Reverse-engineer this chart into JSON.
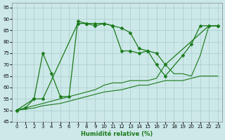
{
  "xlabel": "Humidité relative (%)",
  "bg_color": "#cce8e8",
  "grid_color": "#aacccc",
  "line_color": "#1a7a1a",
  "xlim": [
    -0.5,
    23.5
  ],
  "ylim": [
    45,
    97
  ],
  "yticks": [
    45,
    50,
    55,
    60,
    65,
    70,
    75,
    80,
    85,
    90,
    95
  ],
  "xticks": [
    0,
    1,
    2,
    3,
    4,
    5,
    6,
    7,
    8,
    9,
    10,
    11,
    12,
    13,
    14,
    15,
    16,
    17,
    18,
    19,
    20,
    21,
    22,
    23
  ],
  "series": [
    {
      "x": [
        0,
        1,
        2,
        3,
        4,
        5,
        6,
        7,
        8,
        9,
        10,
        11,
        12,
        13,
        14,
        15,
        16,
        17,
        22,
        23
      ],
      "y": [
        50,
        51,
        55,
        75,
        66,
        56,
        56,
        89,
        88,
        88,
        88,
        87,
        86,
        84,
        77,
        76,
        75,
        70,
        87,
        87
      ],
      "marker": true
    },
    {
      "x": [
        0,
        2,
        3,
        7,
        8,
        9,
        10,
        11,
        12,
        13,
        14,
        15,
        16,
        17,
        19,
        20,
        21,
        22,
        23
      ],
      "y": [
        50,
        55,
        55,
        88,
        88,
        87,
        88,
        87,
        76,
        76,
        75,
        76,
        70,
        65,
        74,
        79,
        87,
        87,
        87
      ],
      "marker": true
    },
    {
      "x": [
        0,
        1,
        2,
        3,
        4,
        5,
        6,
        7,
        8,
        9,
        10,
        11,
        12,
        13,
        14,
        15,
        16,
        17,
        18,
        19,
        20,
        21,
        22,
        23
      ],
      "y": [
        50,
        51,
        52,
        53,
        54,
        55,
        56,
        57,
        58,
        59,
        61,
        62,
        62,
        63,
        63,
        63,
        64,
        70,
        66,
        66,
        65,
        74,
        87,
        87
      ],
      "marker": false
    },
    {
      "x": [
        0,
        1,
        2,
        3,
        4,
        5,
        6,
        7,
        8,
        9,
        10,
        11,
        12,
        13,
        14,
        15,
        16,
        17,
        18,
        19,
        20,
        21,
        22,
        23
      ],
      "y": [
        50,
        50.5,
        51,
        52,
        52.5,
        53,
        54,
        55,
        56,
        57,
        58,
        58.5,
        59,
        60,
        61,
        61,
        62,
        63,
        63,
        63,
        64,
        65,
        65,
        65
      ],
      "marker": false
    }
  ]
}
